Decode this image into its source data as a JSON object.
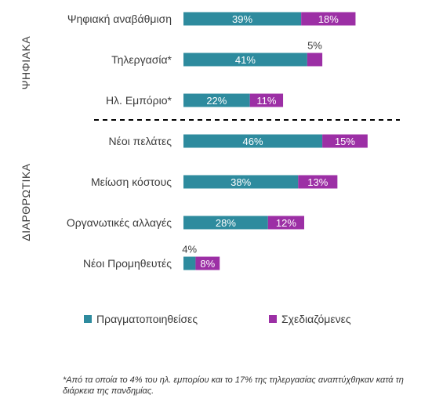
{
  "chart_data": {
    "type": "bar",
    "stacked": true,
    "orientation": "horizontal",
    "categories": [
      "Ψηφιακή αναβάθμιση",
      "Τηλεργασία*",
      "Ηλ. Εμπόριο*",
      "Νέοι πελάτες",
      "Μείωση κόστους",
      "Οργανωτικές αλλαγές",
      "Νέοι Προμηθευτές"
    ],
    "groups": [
      {
        "label": "ΨΗΦΙΑΚΑ",
        "categories": [
          0,
          1,
          2
        ]
      },
      {
        "label": "ΔΙΑΡΘΡΩΤΙΚΑ",
        "categories": [
          3,
          4,
          5,
          6
        ]
      }
    ],
    "series": [
      {
        "name": "Πραγματοποιηθείσες",
        "color": "#2E8B9E",
        "values": [
          39,
          41,
          22,
          46,
          38,
          28,
          4
        ],
        "labels": [
          "39%",
          "41%",
          "22%",
          "46%",
          "38%",
          "28%",
          "4%"
        ]
      },
      {
        "name": "Σχεδιαζόμενες",
        "color": "#9C2FA5",
        "values": [
          18,
          5,
          11,
          15,
          13,
          12,
          8
        ],
        "labels": [
          "18%",
          "5%",
          "11%",
          "15%",
          "13%",
          "12%",
          "8%"
        ]
      }
    ],
    "legend_position": "bottom",
    "grid": false
  },
  "footnote": "*Από τα οποία το 4% του ηλ. εμπορίου και το 17% της τηλεργασίας αναπτύχθηκαν κατά τη διάρκεια της πανδημίας."
}
